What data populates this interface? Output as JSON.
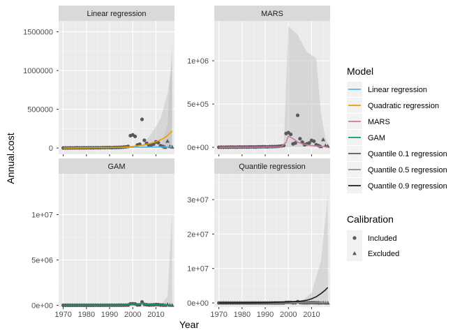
{
  "colors": {
    "panel_bg": "#ebebeb",
    "grid_major": "#ffffff",
    "strip_bg": "#d9d9d9",
    "ribbon": "#bdbdbd",
    "point": "#595959"
  },
  "chart_data": {
    "type": "scatter",
    "xlabel": "Year",
    "ylabel": "Annual.cost",
    "xlim": [
      1968,
      2018
    ],
    "x_ticks": [
      1970,
      1980,
      1990,
      2000,
      2010
    ],
    "x_tick_labels": [
      "1970",
      "1980",
      "1990",
      "2000",
      "2010"
    ],
    "grid": true,
    "legend_position": "right",
    "legends": [
      {
        "title": "Model",
        "entries": [
          {
            "label": "Linear regression",
            "color": "#56b4e9",
            "symbol": "line"
          },
          {
            "label": "Quadratic regression",
            "color": "#e69f00",
            "symbol": "line"
          },
          {
            "label": "MARS",
            "color": "#cc79a7",
            "symbol": "line"
          },
          {
            "label": "GAM",
            "color": "#009e73",
            "symbol": "line"
          },
          {
            "label": "Quantile 0.1 regression",
            "color": "#595959",
            "symbol": "line"
          },
          {
            "label": "Quantile 0.5 regression",
            "color": "#8c8c8c",
            "symbol": "line"
          },
          {
            "label": "Quantile 0.9 regression",
            "color": "#1a1a1a",
            "symbol": "line"
          }
        ]
      },
      {
        "title": "Calibration",
        "entries": [
          {
            "label": "Included",
            "color": "#595959",
            "symbol": "circle"
          },
          {
            "label": "Excluded",
            "color": "#595959",
            "symbol": "triangle"
          }
        ]
      }
    ],
    "observations": {
      "included": {
        "x": [
          1970,
          1971,
          1972,
          1973,
          1974,
          1975,
          1976,
          1977,
          1978,
          1979,
          1980,
          1981,
          1982,
          1983,
          1984,
          1985,
          1986,
          1987,
          1988,
          1989,
          1990,
          1991,
          1992,
          1993,
          1994,
          1995,
          1996,
          1997,
          1998,
          1999,
          2000,
          2001,
          2002,
          2003,
          2004,
          2005,
          2006,
          2007,
          2008,
          2009,
          2010,
          2011,
          2012,
          2013
        ],
        "y": [
          1000,
          1500,
          1200,
          2000,
          1800,
          2500,
          3000,
          2200,
          2800,
          3500,
          2500,
          4000,
          3000,
          3500,
          5000,
          4200,
          3800,
          6000,
          5500,
          7000,
          6500,
          5000,
          8000,
          7500,
          9000,
          10000,
          12000,
          15000,
          20000,
          160000,
          170000,
          150000,
          40000,
          50000,
          370000,
          100000,
          60000,
          30000,
          40000,
          50000,
          80000,
          70000,
          30000,
          20000
        ]
      },
      "excluded": {
        "x": [
          2014,
          2015,
          2016,
          2017
        ],
        "y": [
          10000,
          90000,
          20000,
          15000
        ]
      }
    },
    "panels": [
      {
        "title": "Linear regression",
        "ylim": [
          -80000,
          1640000
        ],
        "y_ticks": [
          0,
          500000,
          1000000,
          1500000
        ],
        "y_tick_labels": [
          "0",
          "500000",
          "1000000",
          "1500000"
        ],
        "ribbons": [
          {
            "x": [
              2003,
              2008,
              2012,
              2015,
              2017
            ],
            "lower": [
              0,
              0,
              0,
              0,
              0
            ],
            "upper": [
              0,
              180000,
              380000,
              700000,
              1120000
            ]
          },
          {
            "x": [
              2012,
              2015,
              2017
            ],
            "lower": [
              0,
              0,
              0
            ],
            "upper": [
              0,
              300000,
              1350000
            ]
          }
        ],
        "fits": [
          {
            "name": "Linear regression",
            "color": "#56b4e9",
            "x": [
              1970,
              2017
            ],
            "y": [
              0,
              15000
            ]
          },
          {
            "name": "Quadratic regression",
            "color": "#e69f00",
            "x": [
              1970,
              1980,
              1990,
              1995,
              2000,
              2005,
              2010,
              2013,
              2015,
              2017
            ],
            "y": [
              0,
              2000,
              6000,
              10000,
              20000,
              40000,
              80000,
              120000,
              160000,
              220000
            ]
          }
        ]
      },
      {
        "title": "MARS",
        "ylim": [
          -80000,
          1460000
        ],
        "y_ticks": [
          0,
          500000,
          1000000
        ],
        "y_tick_labels": [
          "0e+00",
          "5e+05",
          "1e+06"
        ],
        "ribbons": [
          {
            "x": [
              1998,
              2000,
              2004,
              2008,
              2012,
              2014,
              2016,
              2017
            ],
            "lower": [
              0,
              0,
              0,
              0,
              0,
              0,
              0,
              0
            ],
            "upper": [
              0,
              1400000,
              1300000,
              1100000,
              1030000,
              400000,
              100000,
              50000
            ]
          }
        ],
        "fits": [
          {
            "name": "MARS",
            "color": "#cc79a7",
            "x": [
              1970,
              1990,
              1997,
              1999,
              2000,
              2002,
              2004,
              2006,
              2008,
              2010,
              2012,
              2014,
              2016,
              2017
            ],
            "y": [
              0,
              3000,
              5000,
              60000,
              130000,
              100000,
              60000,
              40000,
              30000,
              20000,
              15000,
              10000,
              5000,
              3000
            ]
          }
        ]
      },
      {
        "title": "GAM",
        "ylim": [
          -200000,
          14500000
        ],
        "y_ticks": [
          0,
          5000000,
          10000000
        ],
        "y_tick_labels": [
          "0e+00",
          "5e+06",
          "1e+07"
        ],
        "ribbons": [
          {
            "x": [
              2012,
              2015,
              2017
            ],
            "lower": [
              0,
              0,
              0
            ],
            "upper": [
              0,
              1000000,
              10200000
            ]
          }
        ],
        "fits": [
          {
            "name": "GAM",
            "color": "#009e73",
            "x": [
              1970,
              1990,
              1997,
              1999,
              2000,
              2002,
              2004,
              2006,
              2008,
              2010,
              2012,
              2014,
              2016,
              2017
            ],
            "y": [
              0,
              10000,
              20000,
              120000,
              150000,
              130000,
              200000,
              120000,
              60000,
              40000,
              30000,
              20000,
              10000,
              5000
            ]
          }
        ]
      },
      {
        "title": "Quantile regression",
        "ylim": [
          -1200000,
          37500000
        ],
        "y_ticks": [
          0,
          10000000,
          20000000,
          30000000
        ],
        "y_tick_labels": [
          "0e+00",
          "1e+07",
          "2e+07",
          "3e+07"
        ],
        "ribbons": [
          {
            "x": [
              2005,
              2010,
              2014,
              2017
            ],
            "lower": [
              0,
              0,
              0,
              0
            ],
            "upper": [
              0,
              3000000,
              12000000,
              31000000
            ]
          }
        ],
        "fits": [
          {
            "name": "Quantile 0.1 regression",
            "color": "#595959",
            "x": [
              1970,
              2017
            ],
            "y": [
              0,
              20000
            ]
          },
          {
            "name": "Quantile 0.5 regression",
            "color": "#8c8c8c",
            "x": [
              1970,
              2017
            ],
            "y": [
              0,
              80000
            ]
          },
          {
            "name": "Quantile 0.9 regression",
            "color": "#1a1a1a",
            "x": [
              1970,
              1980,
              1990,
              2000,
              2005,
              2008,
              2010,
              2012,
              2014,
              2016,
              2017
            ],
            "y": [
              0,
              30000,
              100000,
              300000,
              500000,
              800000,
              1200000,
              1800000,
              2700000,
              3800000,
              4500000
            ]
          }
        ]
      }
    ]
  }
}
